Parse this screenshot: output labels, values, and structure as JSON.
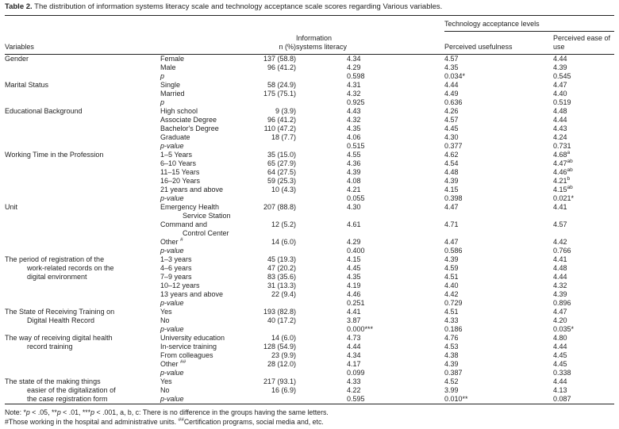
{
  "title": {
    "label": "Table 2.",
    "text": "The distribution of information systems literacy scale and technology acceptance scale scores regarding Various variables."
  },
  "header": {
    "variables": "Variables",
    "n": "n (%)",
    "isl": "Information\nsystems literacy",
    "tech": "Technology acceptance levels",
    "pu": "Perceived usefulness",
    "peou": "Perceived ease of use"
  },
  "sections": [
    {
      "variable": "Gender",
      "rows": [
        {
          "cat": "Female",
          "n": "137 (58.8)",
          "isl": "4.34",
          "pu": "4.57",
          "peou": "4.44"
        },
        {
          "cat": "Male",
          "n": "96 (41.2)",
          "isl": "4.29",
          "pu": "4.35",
          "peou": "4.39"
        },
        {
          "cat": "p",
          "p": true,
          "n": "",
          "isl": "0.598",
          "pu": "0.034*",
          "peou": "0.545"
        }
      ]
    },
    {
      "variable": "Marital Status",
      "rows": [
        {
          "cat": "Single",
          "n": "58 (24.9)",
          "isl": "4.31",
          "pu": "4.44",
          "peou": "4.47"
        },
        {
          "cat": "Married",
          "n": "175 (75.1)",
          "isl": "4.32",
          "pu": "4.49",
          "peou": "4.40"
        },
        {
          "cat": "p",
          "p": true,
          "n": "",
          "isl": "0.925",
          "pu": "0.636",
          "peou": "0.519"
        }
      ]
    },
    {
      "variable": "Educational Background",
      "rows": [
        {
          "cat": "High school",
          "n": "9 (3.9)",
          "isl": "4.43",
          "pu": "4.26",
          "peou": "4.48"
        },
        {
          "cat": "Associate Degree",
          "n": "96 (41.2)",
          "isl": "4.32",
          "pu": "4.57",
          "peou": "4.44"
        },
        {
          "cat": "Bachelor's Degree",
          "n": "110 (47.2)",
          "isl": "4.35",
          "pu": "4.45",
          "peou": "4.43"
        },
        {
          "cat": "Graduate",
          "n": "18 (7.7)",
          "isl": "4.06",
          "pu": "4.30",
          "peou": "4.24"
        },
        {
          "cat": "p-value",
          "p": true,
          "n": "",
          "isl": "0.515",
          "pu": "0.377",
          "peou": "0.731"
        }
      ]
    },
    {
      "variable": "Working Time in the Profession",
      "rows": [
        {
          "cat": "1–5 Years",
          "n": "35 (15.0)",
          "isl": "4.55",
          "pu": "4.62",
          "peou": "4.68",
          "peouSup": "a"
        },
        {
          "cat": "6–10 Years",
          "n": "65 (27.9)",
          "isl": "4.36",
          "pu": "4.54",
          "peou": "4.47",
          "peouSup": "ab"
        },
        {
          "cat": "11–15 Years",
          "n": "64 (27.5)",
          "isl": "4.39",
          "pu": "4.48",
          "peou": "4.46",
          "peouSup": "ab"
        },
        {
          "cat": "16–20 Years",
          "n": "59 (25.3)",
          "isl": "4.08",
          "pu": "4.39",
          "peou": "4.21",
          "peouSup": "b"
        },
        {
          "cat": "21 years and above",
          "n": "10 (4.3)",
          "isl": "4.21",
          "pu": "4.15",
          "peou": "4.15",
          "peouSup": "ab"
        },
        {
          "cat": "p-value",
          "p": true,
          "n": "",
          "isl": "0.055",
          "pu": "0.398",
          "peou": "0.021*"
        }
      ]
    },
    {
      "variable": "Unit",
      "rows": [
        {
          "cat": "Emergency Health\nService Station",
          "n": "207 (88.8)",
          "isl": "4.30",
          "pu": "4.47",
          "peou": "4.41"
        },
        {
          "cat": "Command and\nControl Center",
          "n": "12 (5.2)",
          "isl": "4.61",
          "pu": "4.71",
          "peou": "4.57"
        },
        {
          "cat": "Other ",
          "catSup": "#",
          "n": "14 (6.0)",
          "isl": "4.29",
          "pu": "4.47",
          "peou": "4.42"
        },
        {
          "cat": "p-value",
          "p": true,
          "n": "",
          "isl": "0.400",
          "pu": "0.586",
          "peou": "0.766"
        }
      ]
    },
    {
      "variable": "The period of registration of the\nwork-related records on the\ndigital environment",
      "rows": [
        {
          "cat": "1–3 years",
          "n": "45 (19.3)",
          "isl": "4.15",
          "pu": "4.39",
          "peou": "4.41"
        },
        {
          "cat": "4–6 years",
          "n": "47 (20.2)",
          "isl": "4.45",
          "pu": "4.59",
          "peou": "4.48"
        },
        {
          "cat": "7–9 years",
          "n": "83 (35.6)",
          "isl": "4.35",
          "pu": "4.51",
          "peou": "4.44"
        },
        {
          "cat": "10–12 years",
          "n": "31 (13.3)",
          "isl": "4.19",
          "pu": "4.40",
          "peou": "4.32"
        },
        {
          "cat": "13 years and above",
          "n": "22 (9.4)",
          "isl": "4.46",
          "pu": "4.42",
          "peou": "4.39"
        },
        {
          "cat": "p-value",
          "p": true,
          "n": "",
          "isl": "0.251",
          "pu": "0.729",
          "peou": "0.896"
        }
      ]
    },
    {
      "variable": "The State of Receiving Training on\nDigital Health Record",
      "rows": [
        {
          "cat": "Yes",
          "n": "193 (82.8)",
          "isl": "4.41",
          "pu": "4.51",
          "peou": "4.47"
        },
        {
          "cat": "No",
          "n": "40 (17.2)",
          "isl": "3.87",
          "pu": "4.33",
          "peou": "4.20"
        },
        {
          "cat": "p-value",
          "p": true,
          "n": "",
          "isl": "0.000***",
          "pu": "0.186",
          "peou": "0.035*"
        }
      ]
    },
    {
      "variable": "The way of receiving digital health\nrecord training",
      "rows": [
        {
          "cat": "University education",
          "n": "14 (6.0)",
          "isl": "4.73",
          "pu": "4.76",
          "peou": "4.80"
        },
        {
          "cat": "In-service training",
          "n": "128 (54.9)",
          "isl": "4.44",
          "pu": "4.53",
          "peou": "4.44"
        },
        {
          "cat": "From colleagues",
          "n": "23 (9.9)",
          "isl": "4.34",
          "pu": "4.38",
          "peou": "4.45"
        },
        {
          "cat": "Other ",
          "catSup": "##",
          "n": "28 (12.0)",
          "isl": "4.17",
          "pu": "4.39",
          "peou": "4.45"
        },
        {
          "cat": "p-value",
          "p": true,
          "n": "",
          "isl": "0.099",
          "pu": "0.387",
          "peou": "0.338"
        }
      ]
    },
    {
      "variable": "The state of the making things\neasier of the digitalization of\nthe case registration form",
      "rows": [
        {
          "cat": "Yes",
          "n": "217 (93.1)",
          "isl": "4.33",
          "pu": "4.52",
          "peou": "4.44"
        },
        {
          "cat": "No",
          "n": "16 (6.9)",
          "isl": "4.22",
          "pu": "3.99",
          "peou": "4.13"
        },
        {
          "cat": "p-value",
          "p": true,
          "n": "",
          "isl": "0.595",
          "pu": "0.010**",
          "peou": "0.087"
        }
      ]
    }
  ],
  "notes": [
    {
      "segments": [
        {
          "text": "Note: *"
        },
        {
          "text": "p",
          "italic": true
        },
        {
          "text": " < .05, **"
        },
        {
          "text": "p",
          "italic": true
        },
        {
          "text": " < .01, ***"
        },
        {
          "text": "p",
          "italic": true
        },
        {
          "text": " < .001, a, b, c: There is no difference in the groups having the same letters."
        }
      ]
    },
    {
      "segments": [
        {
          "text": "#Those working in the hospital and administrative units. "
        },
        {
          "text": "##",
          "sup": true
        },
        {
          "text": "Certification programs, social media and, etc."
        }
      ]
    }
  ]
}
